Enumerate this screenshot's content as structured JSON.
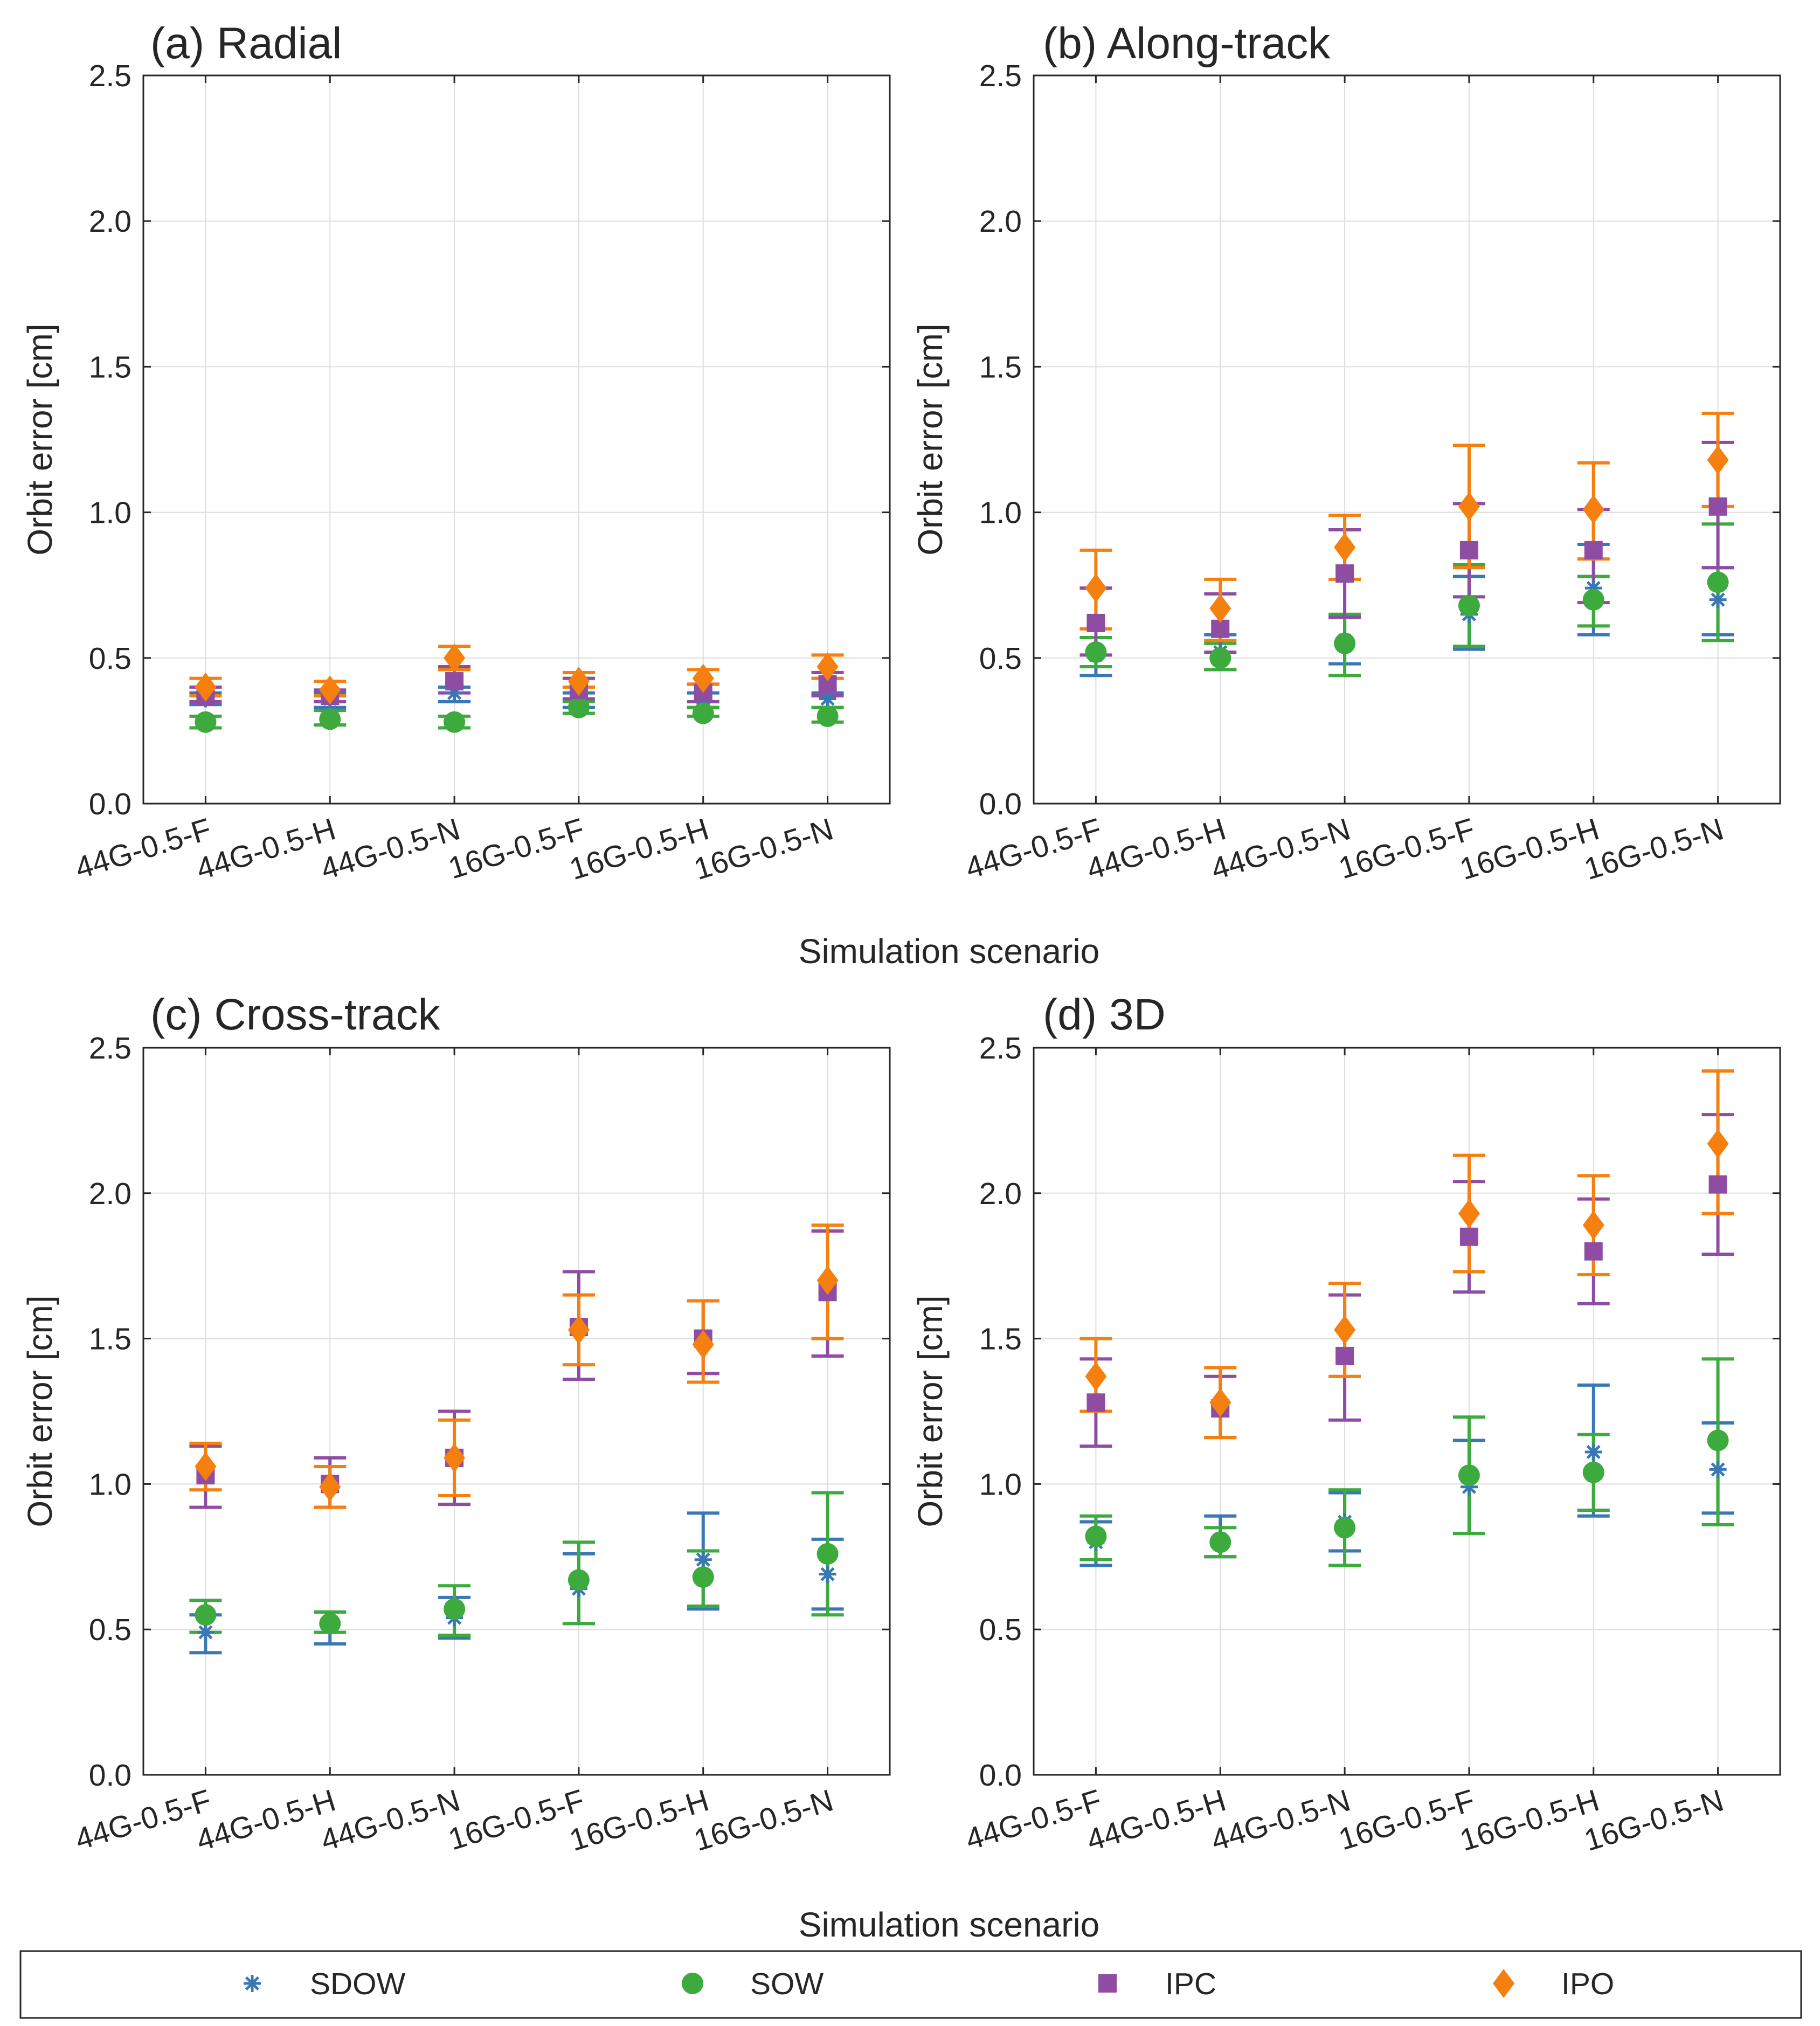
{
  "colors": {
    "SDOW": "#3A78B5",
    "SOW": "#3CAA3C",
    "IPC": "#8E4DA3",
    "IPO": "#F57F0F",
    "axis": "#262626",
    "grid": "#DDDDDD"
  },
  "figure": {
    "xlabel": "Simulation scenario",
    "ylabel": "Orbit error [cm]"
  },
  "legend": {
    "placement": "bottom",
    "items": [
      {
        "label": "SDOW",
        "marker": "asterisk"
      },
      {
        "label": "SOW",
        "marker": "circle"
      },
      {
        "label": "IPC",
        "marker": "square"
      },
      {
        "label": "IPO",
        "marker": "diamond"
      }
    ]
  },
  "chart_data": [
    {
      "type": "scatter",
      "title": "(a) Radial",
      "ylabel": "Orbit error [cm]",
      "ylim": [
        0,
        2.5
      ],
      "yticks": [
        "0.0",
        "0.5",
        "1.0",
        "1.5",
        "2.0",
        "2.5"
      ],
      "grid": true,
      "categories": [
        "44G-0.5-F",
        "44G-0.5-H",
        "44G-0.5-N",
        "16G-0.5-F",
        "16G-0.5-H",
        "16G-0.5-N"
      ],
      "series": [
        {
          "name": "SDOW",
          "values": [
            0.36,
            0.36,
            0.38,
            0.36,
            0.36,
            0.36
          ],
          "lower": [
            0.34,
            0.33,
            0.35,
            0.33,
            0.33,
            0.33
          ],
          "upper": [
            0.38,
            0.38,
            0.4,
            0.38,
            0.38,
            0.38
          ]
        },
        {
          "name": "SOW",
          "values": [
            0.28,
            0.29,
            0.28,
            0.33,
            0.31,
            0.3
          ],
          "lower": [
            0.26,
            0.27,
            0.26,
            0.31,
            0.3,
            0.28
          ],
          "upper": [
            0.3,
            0.32,
            0.3,
            0.35,
            0.33,
            0.33
          ]
        },
        {
          "name": "IPC",
          "values": [
            0.37,
            0.37,
            0.42,
            0.39,
            0.38,
            0.41
          ],
          "lower": [
            0.35,
            0.35,
            0.38,
            0.36,
            0.35,
            0.37
          ],
          "upper": [
            0.4,
            0.39,
            0.47,
            0.43,
            0.41,
            0.45
          ]
        },
        {
          "name": "IPO",
          "values": [
            0.4,
            0.39,
            0.5,
            0.42,
            0.43,
            0.47
          ],
          "lower": [
            0.37,
            0.37,
            0.46,
            0.4,
            0.41,
            0.43
          ],
          "upper": [
            0.43,
            0.42,
            0.54,
            0.45,
            0.46,
            0.51
          ]
        }
      ]
    },
    {
      "type": "scatter",
      "title": "(b) Along-track",
      "ylabel": "Orbit error [cm]",
      "ylim": [
        0,
        2.5
      ],
      "yticks": [
        "0.0",
        "0.5",
        "1.0",
        "1.5",
        "2.0",
        "2.5"
      ],
      "grid": true,
      "categories": [
        "44G-0.5-F",
        "44G-0.5-H",
        "44G-0.5-N",
        "16G-0.5-F",
        "16G-0.5-H",
        "16G-0.5-N"
      ],
      "series": [
        {
          "name": "SDOW",
          "values": [
            0.51,
            0.52,
            0.56,
            0.65,
            0.74,
            0.7
          ],
          "lower": [
            0.44,
            0.46,
            0.48,
            0.53,
            0.58,
            0.58
          ],
          "upper": [
            0.57,
            0.58,
            0.64,
            0.78,
            0.89,
            0.81
          ]
        },
        {
          "name": "SOW",
          "values": [
            0.52,
            0.5,
            0.55,
            0.68,
            0.7,
            0.76
          ],
          "lower": [
            0.47,
            0.46,
            0.44,
            0.54,
            0.61,
            0.56
          ],
          "upper": [
            0.57,
            0.55,
            0.65,
            0.82,
            0.78,
            0.96
          ]
        },
        {
          "name": "IPC",
          "values": [
            0.62,
            0.6,
            0.79,
            0.87,
            0.87,
            1.02
          ],
          "lower": [
            0.51,
            0.52,
            0.64,
            0.71,
            0.69,
            0.81
          ],
          "upper": [
            0.74,
            0.72,
            0.94,
            1.03,
            1.01,
            1.24
          ]
        },
        {
          "name": "IPO",
          "values": [
            0.74,
            0.67,
            0.88,
            1.02,
            1.01,
            1.18
          ],
          "lower": [
            0.6,
            0.56,
            0.77,
            0.81,
            0.84,
            1.02
          ],
          "upper": [
            0.87,
            0.77,
            0.99,
            1.23,
            1.17,
            1.34
          ]
        }
      ]
    },
    {
      "type": "scatter",
      "title": "(c) Cross-track",
      "ylabel": "Orbit error [cm]",
      "ylim": [
        0,
        2.5
      ],
      "yticks": [
        "0.0",
        "0.5",
        "1.0",
        "1.5",
        "2.0",
        "2.5"
      ],
      "grid": true,
      "categories": [
        "44G-0.5-F",
        "44G-0.5-H",
        "44G-0.5-N",
        "16G-0.5-F",
        "16G-0.5-H",
        "16G-0.5-N"
      ],
      "series": [
        {
          "name": "SDOW",
          "values": [
            0.49,
            0.51,
            0.54,
            0.64,
            0.74,
            0.69
          ],
          "lower": [
            0.42,
            0.45,
            0.47,
            0.52,
            0.57,
            0.57
          ],
          "upper": [
            0.55,
            0.56,
            0.61,
            0.76,
            0.9,
            0.81
          ]
        },
        {
          "name": "SOW",
          "values": [
            0.55,
            0.52,
            0.57,
            0.67,
            0.68,
            0.76
          ],
          "lower": [
            0.49,
            0.49,
            0.48,
            0.52,
            0.58,
            0.55
          ],
          "upper": [
            0.6,
            0.56,
            0.65,
            0.8,
            0.77,
            0.97
          ]
        },
        {
          "name": "IPC",
          "values": [
            1.03,
            1.0,
            1.09,
            1.54,
            1.5,
            1.66
          ],
          "lower": [
            0.92,
            0.92,
            0.93,
            1.36,
            1.38,
            1.44
          ],
          "upper": [
            1.13,
            1.09,
            1.25,
            1.73,
            1.63,
            1.87
          ]
        },
        {
          "name": "IPO",
          "values": [
            1.06,
            0.99,
            1.09,
            1.53,
            1.48,
            1.7
          ],
          "lower": [
            0.98,
            0.92,
            0.96,
            1.41,
            1.35,
            1.5
          ],
          "upper": [
            1.14,
            1.06,
            1.22,
            1.65,
            1.63,
            1.89
          ]
        }
      ]
    },
    {
      "type": "scatter",
      "title": "(d) 3D",
      "ylabel": "Orbit error [cm]",
      "ylim": [
        0,
        2.5
      ],
      "yticks": [
        "0.0",
        "0.5",
        "1.0",
        "1.5",
        "2.0",
        "2.5"
      ],
      "grid": true,
      "categories": [
        "44G-0.5-F",
        "44G-0.5-H",
        "44G-0.5-N",
        "16G-0.5-F",
        "16G-0.5-H",
        "16G-0.5-N"
      ],
      "series": [
        {
          "name": "SDOW",
          "values": [
            0.8,
            0.81,
            0.87,
            0.99,
            1.11,
            1.05
          ],
          "lower": [
            0.72,
            0.75,
            0.77,
            0.83,
            0.89,
            0.9
          ],
          "upper": [
            0.87,
            0.89,
            0.97,
            1.15,
            1.34,
            1.21
          ]
        },
        {
          "name": "SOW",
          "values": [
            0.82,
            0.8,
            0.85,
            1.03,
            1.04,
            1.15
          ],
          "lower": [
            0.74,
            0.75,
            0.72,
            0.83,
            0.91,
            0.86
          ],
          "upper": [
            0.89,
            0.85,
            0.98,
            1.23,
            1.17,
            1.43
          ]
        },
        {
          "name": "IPC",
          "values": [
            1.28,
            1.26,
            1.44,
            1.85,
            1.8,
            2.03
          ],
          "lower": [
            1.13,
            1.16,
            1.22,
            1.66,
            1.62,
            1.79
          ],
          "upper": [
            1.43,
            1.37,
            1.65,
            2.04,
            1.98,
            2.27
          ]
        },
        {
          "name": "IPO",
          "values": [
            1.37,
            1.28,
            1.53,
            1.93,
            1.89,
            2.17
          ],
          "lower": [
            1.25,
            1.16,
            1.37,
            1.73,
            1.72,
            1.93
          ],
          "upper": [
            1.5,
            1.4,
            1.69,
            2.13,
            2.06,
            2.42
          ]
        }
      ]
    }
  ]
}
